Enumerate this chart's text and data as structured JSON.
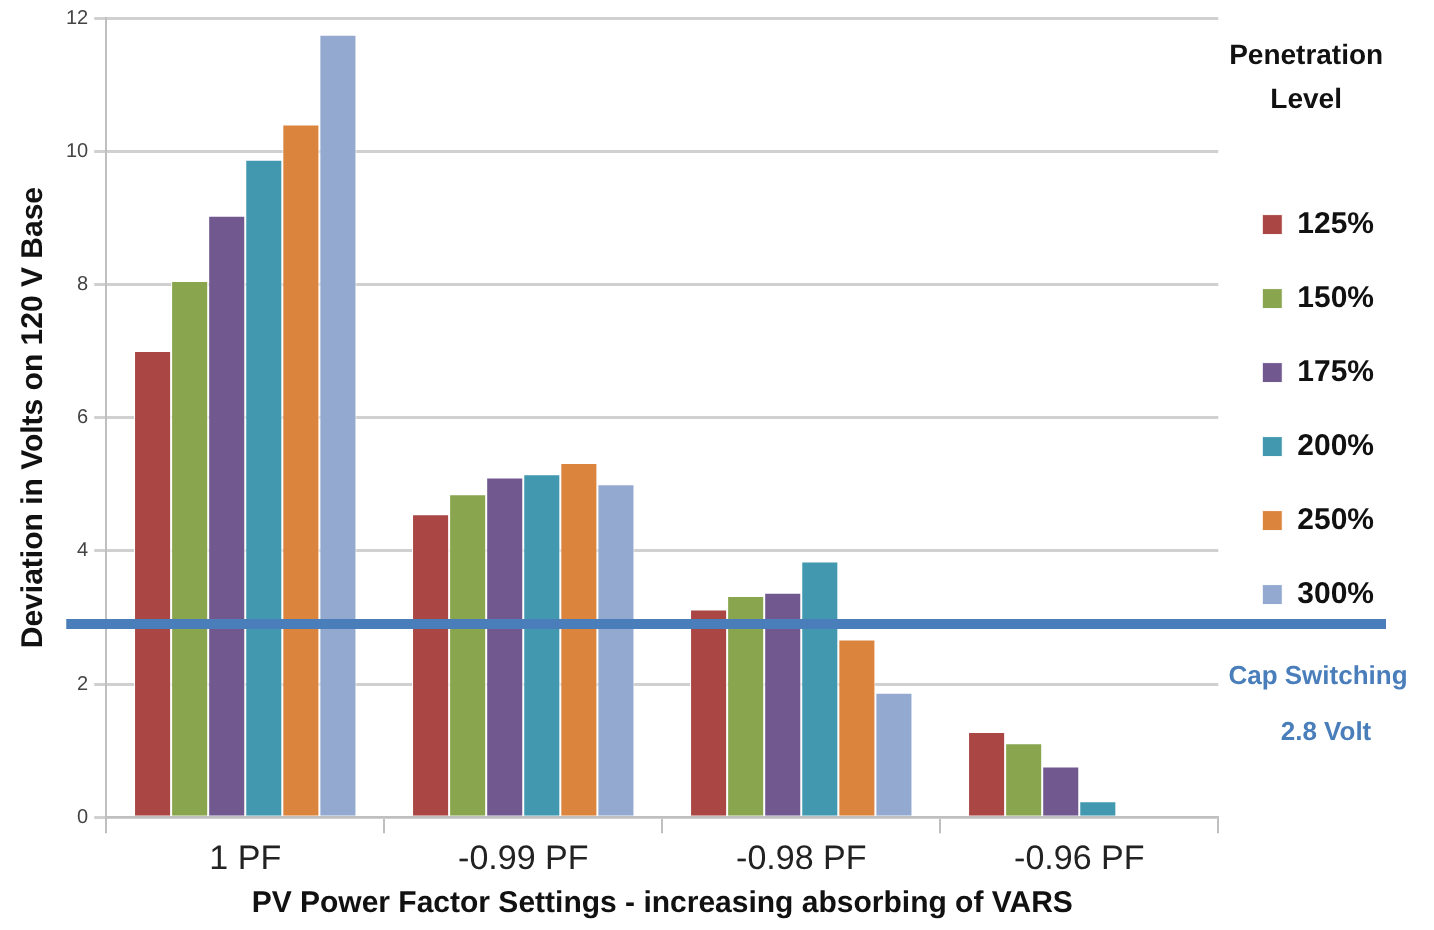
{
  "chart_data": {
    "type": "bar",
    "xlabel": "PV Power Factor Settings - increasing absorbing of VARS",
    "ylabel": "Deviation in Volts on 120 V Base",
    "legend_title": "Penetration Level",
    "categories": [
      "1 PF",
      "-0.99 PF",
      "-0.98 PF",
      "-0.96 PF"
    ],
    "series": [
      {
        "name": "125%",
        "color": "#aa4643",
        "values": [
          7.0,
          4.55,
          3.12,
          1.28
        ]
      },
      {
        "name": "150%",
        "color": "#89a54e",
        "values": [
          8.05,
          4.85,
          3.32,
          1.11
        ]
      },
      {
        "name": "175%",
        "color": "#71588f",
        "values": [
          9.03,
          5.1,
          3.37,
          0.76
        ]
      },
      {
        "name": "200%",
        "color": "#4198af",
        "values": [
          9.87,
          5.15,
          3.84,
          0.24
        ]
      },
      {
        "name": "250%",
        "color": "#db843d",
        "values": [
          10.4,
          5.32,
          2.67,
          null
        ]
      },
      {
        "name": "300%",
        "color": "#93a9cf",
        "values": [
          11.75,
          5.0,
          1.87,
          null
        ]
      }
    ],
    "ylim": [
      0,
      12
    ],
    "yticks": [
      0,
      2,
      4,
      6,
      8,
      10,
      12
    ],
    "grid": "y",
    "legend": "right",
    "ref_lines": [
      {
        "axis": "y",
        "value": 2.9,
        "label": "Cap Switching 2.8 Volt",
        "color": "#4a7ebb"
      }
    ]
  }
}
